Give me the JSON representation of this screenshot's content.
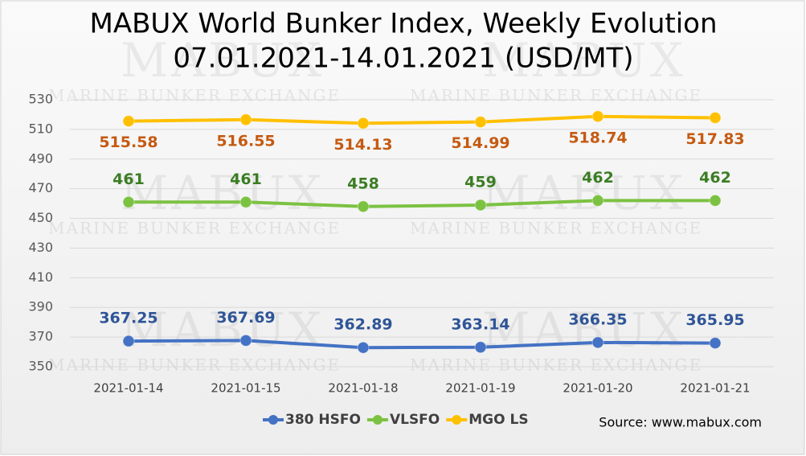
{
  "chart_data": {
    "type": "line",
    "title": "MABUX World Bunker Index, Weekly Evolution",
    "subtitle": "07.01.2021-14.01.2021 (USD/MT)",
    "source": "Source: www.mabux.com",
    "watermark": [
      "MABUX",
      "MARINE BUNKER EXCHANGE"
    ],
    "categories": [
      "2021-01-14",
      "2021-01-15",
      "2021-01-18",
      "2021-01-19",
      "2021-01-20",
      "2021-01-21"
    ],
    "series": [
      {
        "name": "380 HSFO",
        "color": "#4472c4",
        "label_color": "#2f5597",
        "label_position": "above",
        "values": [
          367.25,
          367.69,
          362.89,
          363.14,
          366.35,
          365.95
        ]
      },
      {
        "name": "VLSFO",
        "color": "#7cc242",
        "label_color": "#3b7d23",
        "label_position": "above",
        "values": [
          461,
          461,
          458,
          459,
          462,
          462
        ]
      },
      {
        "name": "MGO LS",
        "color": "#ffc000",
        "label_color": "#c55a11",
        "label_position": "below",
        "values": [
          515.58,
          516.55,
          514.13,
          514.99,
          518.74,
          517.83
        ]
      }
    ],
    "ylim": [
      350,
      530
    ],
    "yticks": [
      350,
      370,
      390,
      410,
      430,
      450,
      470,
      490,
      510,
      530
    ],
    "grid": true
  }
}
